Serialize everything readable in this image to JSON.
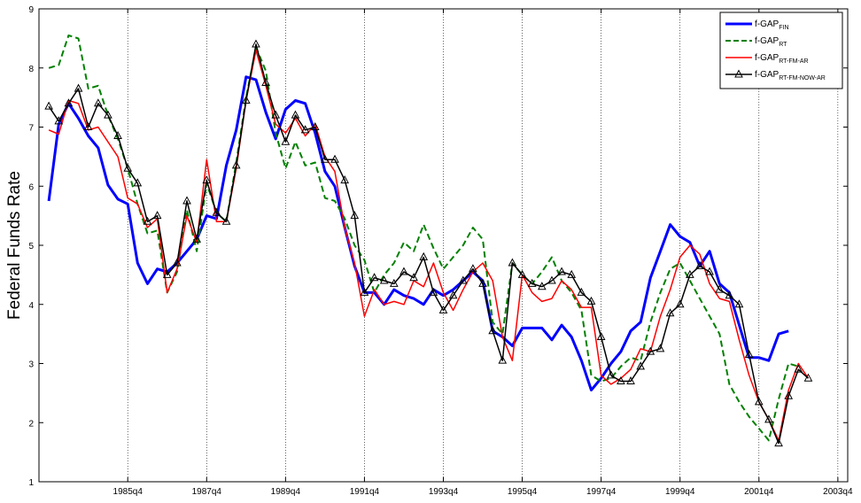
{
  "chart_data": {
    "type": "line",
    "title": "",
    "xlabel": "",
    "ylabel": "Federal Funds Rate",
    "ylim": [
      1,
      9
    ],
    "xlim": [
      1983.5,
      2004.0
    ],
    "yticks": [
      1,
      2,
      3,
      4,
      5,
      6,
      7,
      8,
      9
    ],
    "xticks": [
      {
        "value": 1985.75,
        "label": "1985q4"
      },
      {
        "value": 1987.75,
        "label": "1987q4"
      },
      {
        "value": 1989.75,
        "label": "1989q4"
      },
      {
        "value": 1991.75,
        "label": "1991q4"
      },
      {
        "value": 1993.75,
        "label": "1993q4"
      },
      {
        "value": 1995.75,
        "label": "1995q4"
      },
      {
        "value": 1997.75,
        "label": "1997q4"
      },
      {
        "value": 1999.75,
        "label": "1999q4"
      },
      {
        "value": 2001.75,
        "label": "2001q4"
      },
      {
        "value": 2003.75,
        "label": "2003q4"
      }
    ],
    "grid": "x-dotted",
    "legend": "top-right",
    "x_start": 1983.75,
    "x_step": 0.25,
    "series": [
      {
        "name": "f-GAP",
        "sub": "FIN",
        "color": "#0000ff",
        "dash": "solid",
        "width": 3,
        "marker": "none",
        "values": [
          5.75,
          7.05,
          7.4,
          7.15,
          6.85,
          6.65,
          6.02,
          5.78,
          5.7,
          4.7,
          4.35,
          4.6,
          4.55,
          4.7,
          4.9,
          5.1,
          5.5,
          5.45,
          6.35,
          6.95,
          7.85,
          7.8,
          7.25,
          6.8,
          7.3,
          7.45,
          7.4,
          6.9,
          6.25,
          6.0,
          5.3,
          4.65,
          4.2,
          4.2,
          4.0,
          4.25,
          4.15,
          4.1,
          4.0,
          4.25,
          4.15,
          4.25,
          4.4,
          4.55,
          4.4,
          3.55,
          3.45,
          3.3,
          3.6,
          3.6,
          3.6,
          3.4,
          3.65,
          3.45,
          3.05,
          2.55,
          2.75,
          3.0,
          3.2,
          3.55,
          3.7,
          4.45,
          4.9,
          5.35,
          5.15,
          5.05,
          4.65,
          4.9,
          4.35,
          4.2,
          3.65,
          3.1,
          3.1,
          3.05,
          3.5,
          3.55
        ]
      },
      {
        "name": "f-GAP",
        "sub": "RT",
        "color": "#008000",
        "dash": "dashed",
        "width": 2,
        "marker": "none",
        "values": [
          8.0,
          8.05,
          8.55,
          8.5,
          7.65,
          7.7,
          7.2,
          6.8,
          6.3,
          5.7,
          5.2,
          5.25,
          4.2,
          4.55,
          5.6,
          4.9,
          6.05,
          5.55,
          5.4,
          6.4,
          7.5,
          8.35,
          7.95,
          6.9,
          6.3,
          6.75,
          6.35,
          6.4,
          5.8,
          5.75,
          5.45,
          5.0,
          4.75,
          4.2,
          4.5,
          4.7,
          5.05,
          4.9,
          5.35,
          4.95,
          4.6,
          4.8,
          5.0,
          5.3,
          5.1,
          3.7,
          3.5,
          4.7,
          4.5,
          4.35,
          4.55,
          4.8,
          4.4,
          4.2,
          3.9,
          2.8,
          2.7,
          2.75,
          2.95,
          3.1,
          3.05,
          3.7,
          4.2,
          4.6,
          4.7,
          4.4,
          4.1,
          3.8,
          3.5,
          2.65,
          2.35,
          2.1,
          1.9,
          1.7,
          2.4,
          3.0,
          2.95
        ]
      },
      {
        "name": "f-GAP",
        "sub": "RT-FM-AR",
        "color": "#ff0000",
        "dash": "solid",
        "width": 1.5,
        "marker": "none",
        "values": [
          6.95,
          6.88,
          7.45,
          7.4,
          6.95,
          7.0,
          6.75,
          6.5,
          5.8,
          5.7,
          5.3,
          5.45,
          4.2,
          4.6,
          5.5,
          5.05,
          6.45,
          5.4,
          5.4,
          6.3,
          7.45,
          8.3,
          7.7,
          7.05,
          6.9,
          7.15,
          6.85,
          7.05,
          6.5,
          6.25,
          5.3,
          4.7,
          3.8,
          4.25,
          4.0,
          4.05,
          4.0,
          4.4,
          4.3,
          4.7,
          4.2,
          3.9,
          4.25,
          4.55,
          4.7,
          4.4,
          3.45,
          3.05,
          4.5,
          4.2,
          4.05,
          4.1,
          4.4,
          4.25,
          3.95,
          3.95,
          2.8,
          2.65,
          2.75,
          2.9,
          3.25,
          3.2,
          3.8,
          4.25,
          4.8,
          5.0,
          4.85,
          4.35,
          4.1,
          4.05,
          3.4,
          2.8,
          2.35,
          2.05,
          1.7,
          2.55,
          3.0,
          2.75
        ]
      },
      {
        "name": "f-GAP",
        "sub": "RT-FM-NOW-AR",
        "color": "#000000",
        "dash": "solid",
        "width": 1.5,
        "marker": "triangle",
        "values": [
          7.35,
          7.1,
          7.4,
          7.65,
          7.0,
          7.4,
          7.2,
          6.85,
          6.3,
          6.05,
          5.4,
          5.5,
          4.5,
          4.7,
          5.75,
          5.1,
          6.1,
          5.55,
          5.4,
          6.35,
          7.45,
          8.4,
          7.75,
          7.2,
          6.75,
          7.2,
          6.95,
          7.0,
          6.45,
          6.45,
          6.1,
          5.5,
          4.2,
          4.45,
          4.4,
          4.35,
          4.55,
          4.45,
          4.8,
          4.2,
          3.9,
          4.15,
          4.4,
          4.6,
          4.35,
          3.55,
          3.05,
          4.7,
          4.5,
          4.35,
          4.3,
          4.4,
          4.55,
          4.5,
          4.2,
          4.05,
          3.45,
          2.8,
          2.7,
          2.7,
          2.95,
          3.2,
          3.25,
          3.85,
          4.0,
          4.5,
          4.65,
          4.55,
          4.25,
          4.15,
          4.0,
          3.15,
          2.35,
          2.05,
          1.65,
          2.45,
          2.9,
          2.75
        ]
      }
    ]
  }
}
